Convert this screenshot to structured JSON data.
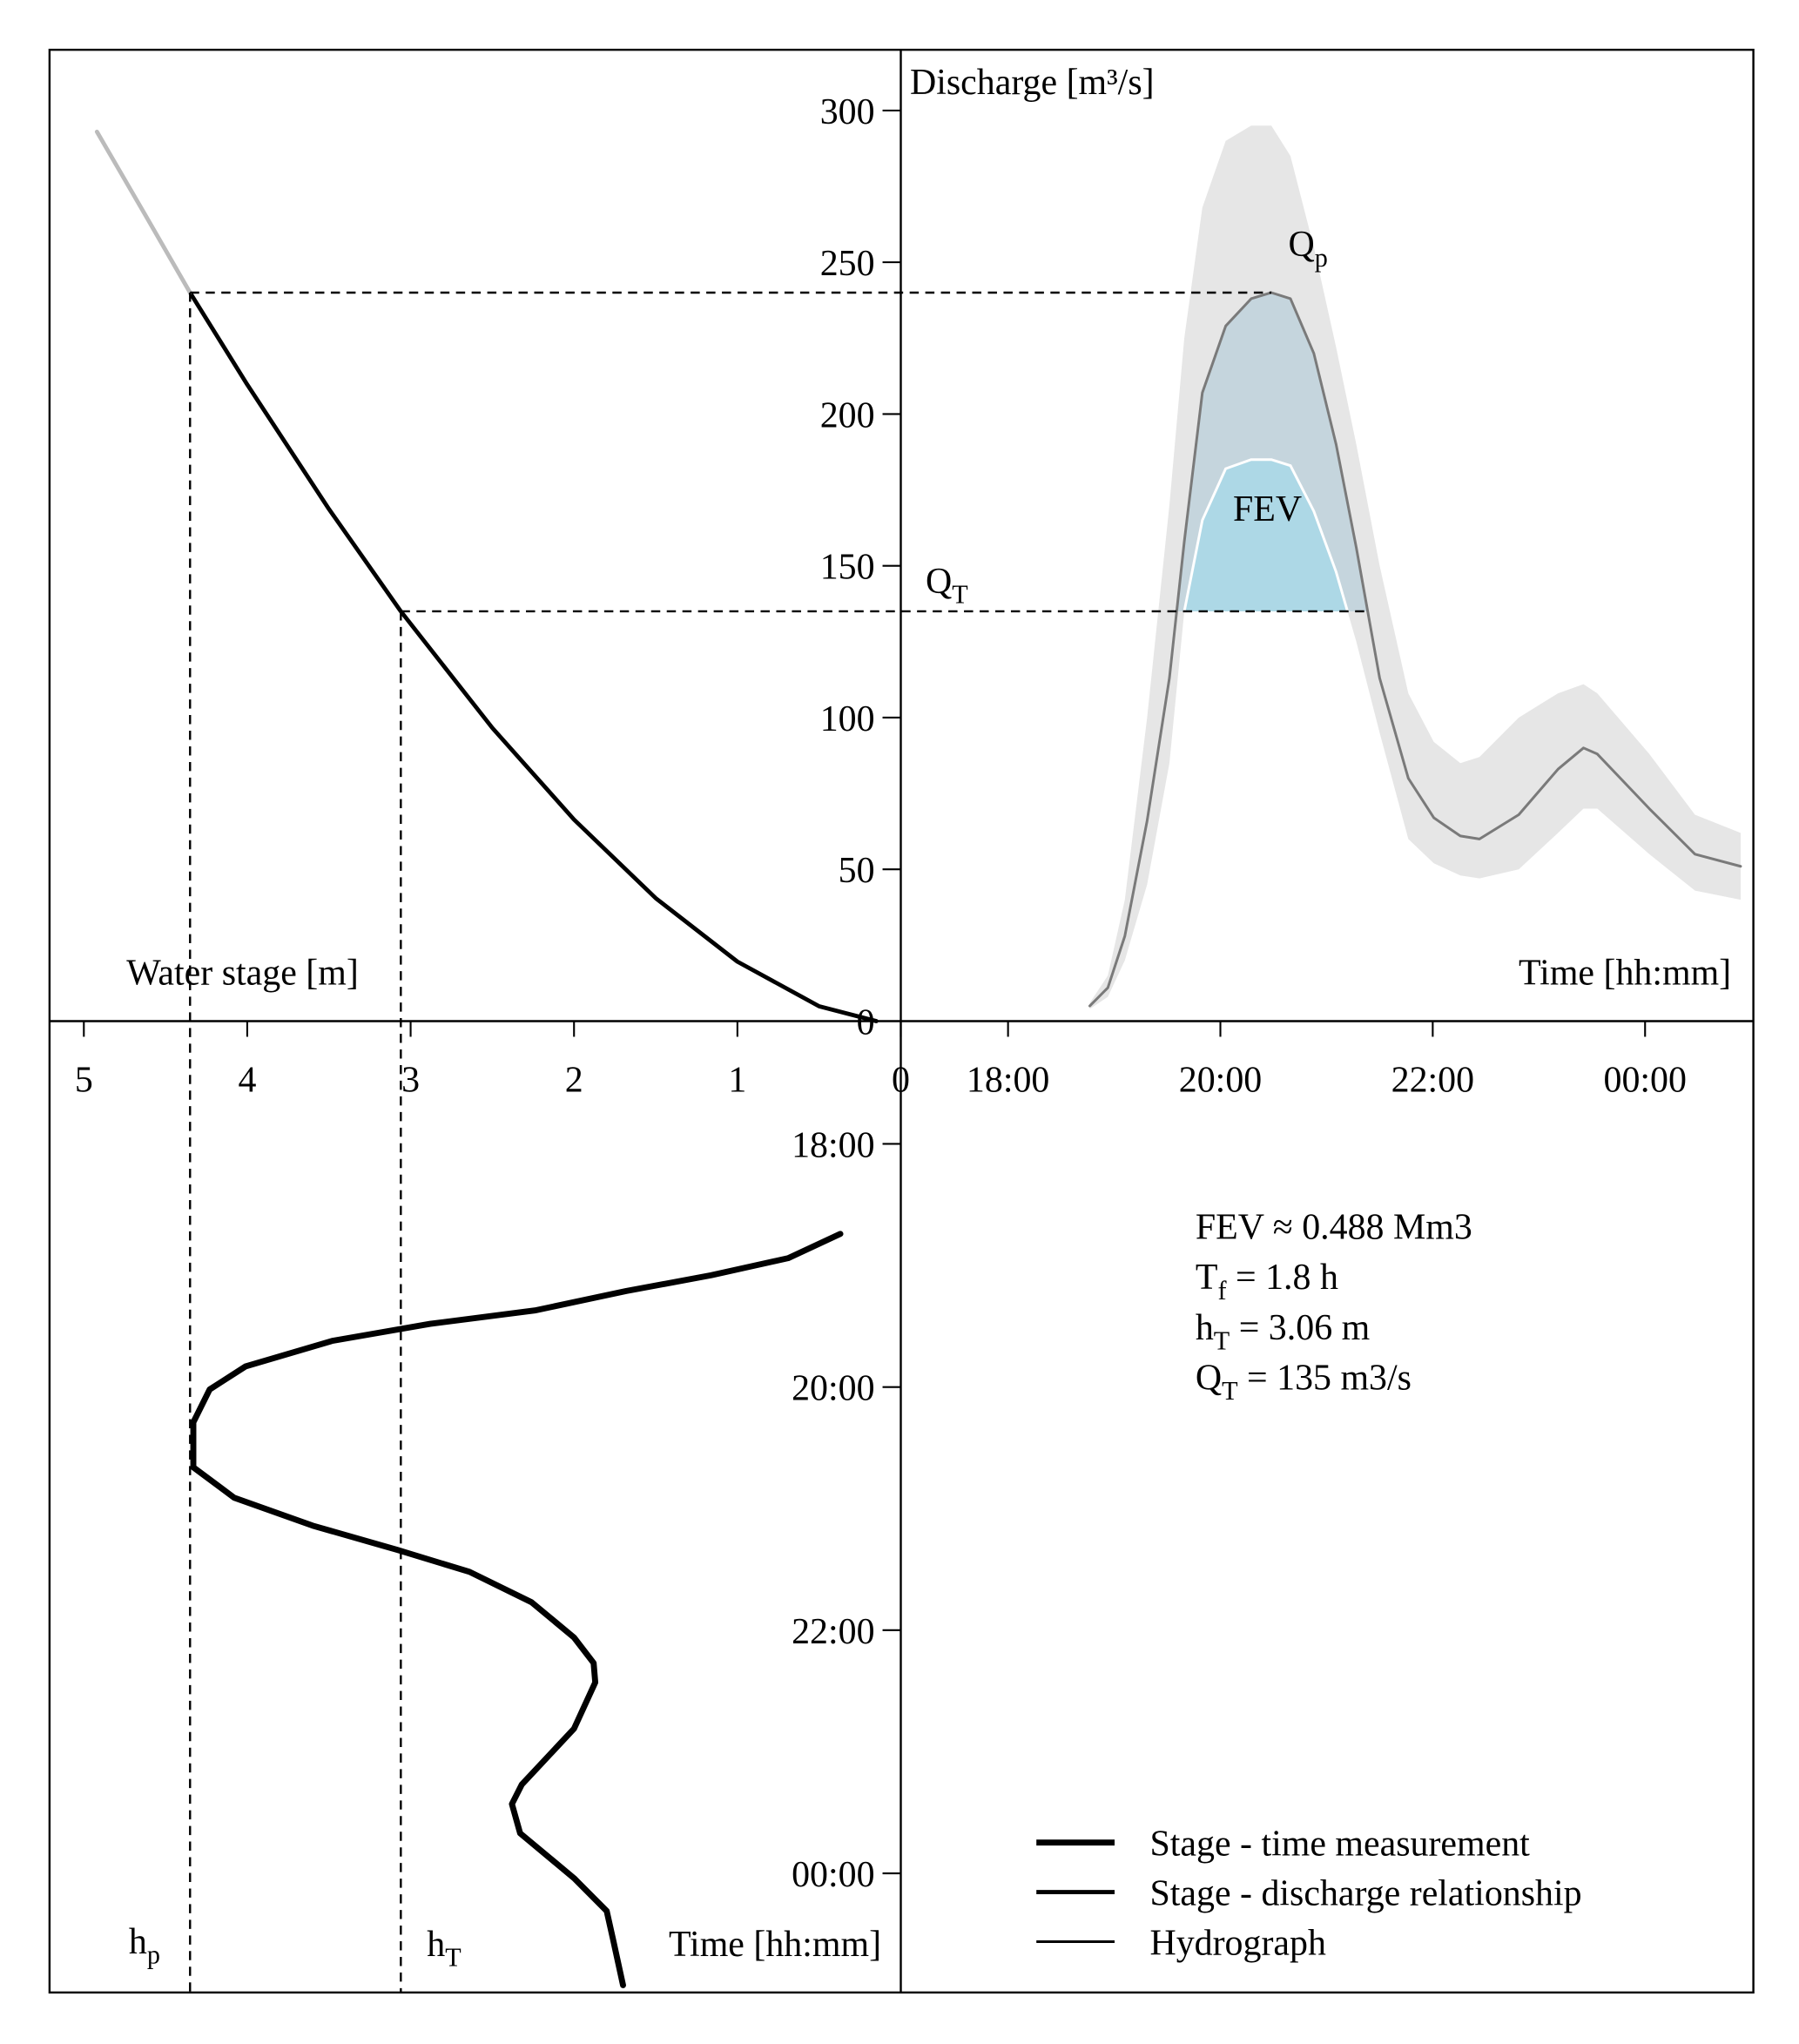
{
  "chart_data": [
    {
      "type": "line",
      "xlabel": "Water stage [m]",
      "xlim": [
        5.21,
        0
      ],
      "ylim": [
        0,
        320
      ],
      "xticks": [
        5,
        4,
        3,
        2,
        1,
        0
      ],
      "series": [
        {
          "name": "Stage - discharge relationship",
          "color": "#000000",
          "linewidth": 3.2,
          "x": [
            0.15,
            0.5,
            1,
            1.5,
            2,
            2.5,
            3.06,
            3.5,
            4,
            4.35
          ],
          "values": [
            0,
            4.9,
            19.6,
            40.5,
            66.4,
            96.6,
            135,
            168.7,
            209.7,
            240
          ]
        },
        {
          "color": "#bbbbbb",
          "linewidth": 3.2,
          "x": [
            4.35,
            4.65,
            4.92
          ],
          "values": [
            240,
            268,
            293
          ]
        }
      ]
    },
    {
      "type": "line",
      "ylabel": "Discharge [m³/s]",
      "xlabel": "Time [hh:mm]",
      "xlim": [
        16.99,
        25.02
      ],
      "ylim": [
        0,
        320
      ],
      "yticks": [
        0,
        50,
        100,
        150,
        200,
        250,
        300
      ],
      "xticks": [
        {
          "value": 18,
          "label": "18:00"
        },
        {
          "value": 20,
          "label": "20:00"
        },
        {
          "value": 22,
          "label": "22:00"
        },
        {
          "value": 24,
          "label": "00:00"
        }
      ],
      "series": [
        {
          "name": "Hydrograph",
          "color": "#7a7a7a",
          "linewidth": 2,
          "x": [
            18.77,
            18.94,
            19.1,
            19.31,
            19.52,
            19.66,
            19.83,
            20.05,
            20.29,
            20.48,
            20.66,
            20.88,
            21.09,
            21.28,
            21.5,
            21.77,
            22.01,
            22.26,
            22.44,
            22.81,
            23.18,
            23.42,
            23.55,
            24.04,
            24.47,
            24.9
          ],
          "values": [
            5,
            11,
            28,
            66,
            113,
            158,
            207,
            229,
            238,
            240,
            238,
            220,
            190,
            156,
            113,
            80,
            67,
            61,
            60,
            68,
            83,
            90,
            88,
            70,
            55,
            51
          ],
          "upper": [
            6,
            15,
            40,
            100,
            170,
            225,
            268,
            290,
            295,
            295,
            285,
            255,
            222,
            190,
            150,
            108,
            92,
            85,
            87,
            100,
            108,
            111,
            108,
            88,
            68,
            62
          ],
          "lower": [
            4,
            8,
            20,
            45,
            85,
            135,
            165,
            182,
            185,
            185,
            183,
            168,
            148,
            125,
            95,
            60,
            52,
            48,
            47,
            50,
            62,
            70,
            70,
            55,
            43,
            40
          ],
          "band_color": "#e6e6e6"
        }
      ],
      "fev": {
        "label": "FEV",
        "color": "#c5d5dd",
        "inner_color": "#add8e6"
      },
      "peak": {
        "label": {
          "text": "Q",
          "sub": "p"
        },
        "q": 240,
        "t": 20.48,
        "stage": 4.35,
        "stage_label": {
          "text": "h",
          "sub": "p"
        }
      },
      "threshold": {
        "label": {
          "text": "Q",
          "sub": "T"
        },
        "q": 135,
        "t_end": 21.39,
        "stage": 3.06,
        "stage_label": {
          "text": "h",
          "sub": "T"
        }
      },
      "stats": [
        {
          "text": "FEV ≈ 0.488 Mm3"
        },
        {
          "text": "T",
          "sub": "f",
          "rest": " = 1.8 h"
        },
        {
          "text": "h",
          "sub": "T",
          "rest": " = 3.06 m"
        },
        {
          "text": "Q",
          "sub": "T",
          "rest": " = 135 m3/s"
        }
      ]
    },
    {
      "type": "line",
      "ylabel": "Time [hh:mm]",
      "xlim": [
        5.21,
        0
      ],
      "ylim": [
        24.98,
        16.99
      ],
      "yticks": [
        {
          "value": 18,
          "label": "18:00"
        },
        {
          "value": 20,
          "label": "20:00"
        },
        {
          "value": 22,
          "label": "22:00"
        },
        {
          "value": 24,
          "label": "00:00"
        }
      ],
      "series": [
        {
          "name": "Stage - time measurement",
          "color": "#000000",
          "linewidth": 4.6,
          "x": [
            0.37,
            0.69,
            1.16,
            1.68,
            2.24,
            2.88,
            3.48,
            4.01,
            4.23,
            4.33,
            4.33,
            4.08,
            3.6,
            3.08,
            2.64,
            2.26,
            2.0,
            1.88,
            1.87,
            2.0,
            2.32,
            2.38,
            2.33,
            2.0,
            1.8,
            1.76,
            1.7
          ],
          "values": [
            18.74,
            18.94,
            19.08,
            19.21,
            19.37,
            19.48,
            19.62,
            19.83,
            20.02,
            20.29,
            20.66,
            20.91,
            21.14,
            21.34,
            21.52,
            21.77,
            22.06,
            22.27,
            22.43,
            22.81,
            23.27,
            23.43,
            23.67,
            24.04,
            24.31,
            24.55,
            24.92
          ]
        }
      ]
    }
  ]
}
